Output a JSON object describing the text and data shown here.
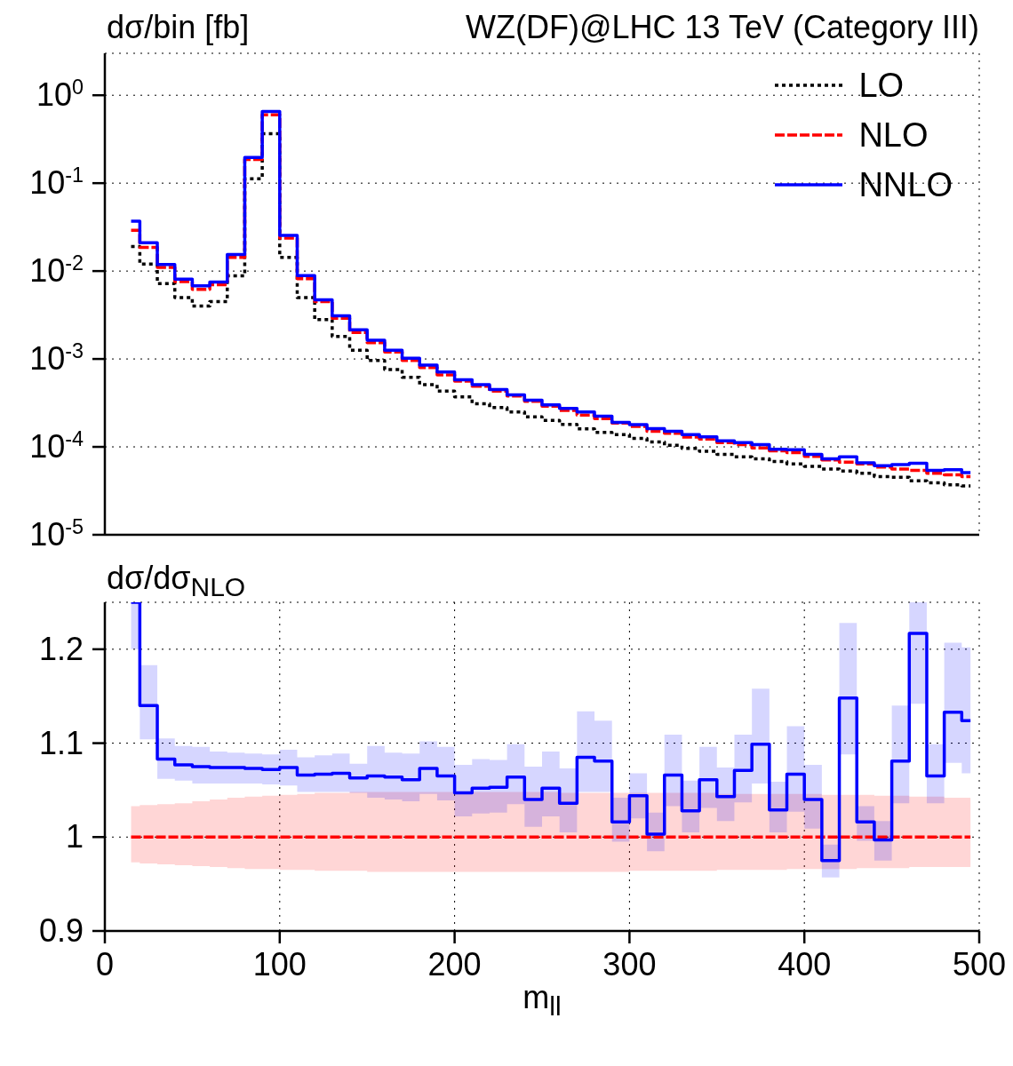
{
  "chart_data": [
    {
      "type": "step",
      "title": "WZ(DF)@LHC 13 TeV (Category III)",
      "ylabel": "dσ/bin [fb]",
      "x": [
        15,
        25,
        35,
        45,
        55,
        65,
        75,
        85,
        95,
        105,
        115,
        125,
        135,
        145,
        155,
        165,
        175,
        185,
        195,
        205,
        215,
        225,
        235,
        245,
        255,
        265,
        275,
        285,
        295,
        305,
        315,
        325,
        335,
        345,
        355,
        365,
        375,
        385,
        395,
        405,
        415,
        425,
        435,
        445,
        455,
        465,
        475,
        485,
        495
      ],
      "series": [
        {
          "name": "LO",
          "color": "#000000",
          "line_style": "dotted",
          "values": [
            0.019,
            0.012,
            0.0072,
            0.005,
            0.004,
            0.0045,
            0.0088,
            0.112,
            0.365,
            0.0143,
            0.005,
            0.0028,
            0.0018,
            0.00126,
            0.00096,
            0.00076,
            0.00062,
            0.00051,
            0.00043,
            0.00037,
            0.00031,
            0.00028,
            0.00025,
            0.00022,
            0.0002,
            0.00018,
            0.00016,
            0.000146,
            0.000138,
            0.000125,
            0.000114,
            0.000104,
            9.6e-05,
            8.9e-05,
            8.2e-05,
            7.7e-05,
            7.3e-05,
            6.8e-05,
            6.4e-05,
            6e-05,
            5.6e-05,
            5.3e-05,
            5e-05,
            4.6e-05,
            4.5e-05,
            4.1e-05,
            3.9e-05,
            3.7e-05,
            3.6e-05
          ]
        },
        {
          "name": "NLO",
          "color": "#ff0000",
          "line_style": "dashed",
          "values": [
            0.029,
            0.0186,
            0.011,
            0.0076,
            0.0062,
            0.007,
            0.0143,
            0.186,
            0.6,
            0.0237,
            0.0082,
            0.0045,
            0.0029,
            0.002,
            0.00153,
            0.0012,
            0.00096,
            0.0008,
            0.00066,
            0.00056,
            0.00049,
            0.00043,
            0.00038,
            0.00033,
            0.00029,
            0.00026,
            0.00023,
            0.00021,
            0.000186,
            0.000171,
            0.00015,
            0.000143,
            0.000129,
            0.000123,
            0.000112,
            0.000106,
            9.7e-05,
            9e-05,
            8.6e-05,
            7.8e-05,
            7.1e-05,
            6.7e-05,
            6.4e-05,
            5.9e-05,
            5.6e-05,
            5.4e-05,
            5e-05,
            4.8e-05,
            4.6e-05
          ]
        },
        {
          "name": "NNLO",
          "color": "#0000ff",
          "line_style": "solid",
          "values": [
            0.037,
            0.021,
            0.0119,
            0.0081,
            0.0068,
            0.0075,
            0.0154,
            0.196,
            0.655,
            0.0255,
            0.0089,
            0.0047,
            0.0031,
            0.00215,
            0.00163,
            0.00126,
            0.00102,
            0.00085,
            0.00071,
            0.00058,
            0.00051,
            0.00045,
            0.00039,
            0.00034,
            0.0003,
            0.000274,
            0.00025,
            0.000224,
            0.00019,
            0.000179,
            0.000161,
            0.00015,
            0.000138,
            0.00013,
            0.000117,
            0.000112,
            0.000106,
            9.4e-05,
            9.3e-05,
            8.2e-05,
            7.3e-05,
            7.7e-05,
            6.6e-05,
            6.1e-05,
            6.3e-05,
            6.5e-05,
            5.4e-05,
            5.5e-05,
            5.1e-05
          ]
        }
      ],
      "log": "y",
      "xlim": [
        0,
        500
      ],
      "ylim": [
        1e-05,
        3
      ],
      "yticks": [
        {
          "value": 1e-05,
          "label": "10$^{-5}$"
        },
        {
          "value": 0.0001,
          "label": "10$^{-4}$"
        },
        {
          "value": 0.001,
          "label": "10$^{-3}$"
        },
        {
          "value": 0.01,
          "label": "10$^{-2}$"
        },
        {
          "value": 0.1,
          "label": "10$^{-1}$"
        },
        {
          "value": 1,
          "label": "10$^{0}$"
        }
      ],
      "xticks": [
        0,
        100,
        200,
        300,
        400,
        500
      ],
      "tick_labels": "y",
      "grid": true,
      "legend": "top right"
    },
    {
      "type": "step",
      "ylabel": "dσ/dσ$_{NLO}$",
      "xlabel": "m$_{ll}$",
      "x": [
        15,
        25,
        35,
        45,
        55,
        65,
        75,
        85,
        95,
        105,
        115,
        125,
        135,
        145,
        155,
        165,
        175,
        185,
        195,
        205,
        215,
        225,
        235,
        245,
        255,
        265,
        275,
        285,
        295,
        305,
        315,
        325,
        335,
        345,
        355,
        365,
        375,
        385,
        395,
        405,
        415,
        425,
        435,
        445,
        455,
        465,
        475,
        485,
        495
      ],
      "series": [
        {
          "color": "#ff0000",
          "line_style": "dashed",
          "values": [
            1,
            1,
            1,
            1,
            1,
            1,
            1,
            1,
            1,
            1,
            1,
            1,
            1,
            1,
            1,
            1,
            1,
            1,
            1,
            1,
            1,
            1,
            1,
            1,
            1,
            1,
            1,
            1,
            1,
            1,
            1,
            1,
            1,
            1,
            1,
            1,
            1,
            1,
            1,
            1,
            1,
            1,
            1,
            1,
            1,
            1,
            1,
            1,
            1
          ],
          "lower": [
            0.973,
            0.972,
            0.971,
            0.97,
            0.969,
            0.968,
            0.967,
            0.966,
            0.966,
            0.965,
            0.965,
            0.964,
            0.964,
            0.964,
            0.963,
            0.963,
            0.963,
            0.963,
            0.963,
            0.963,
            0.963,
            0.963,
            0.963,
            0.963,
            0.963,
            0.963,
            0.963,
            0.963,
            0.963,
            0.964,
            0.964,
            0.964,
            0.964,
            0.964,
            0.965,
            0.965,
            0.965,
            0.965,
            0.966,
            0.966,
            0.966,
            0.966,
            0.967,
            0.967,
            0.967,
            0.968,
            0.968,
            0.968,
            0.968
          ],
          "upper": [
            1.033,
            1.034,
            1.035,
            1.036,
            1.038,
            1.04,
            1.042,
            1.043,
            1.044,
            1.045,
            1.046,
            1.047,
            1.047,
            1.048,
            1.048,
            1.048,
            1.048,
            1.048,
            1.048,
            1.048,
            1.048,
            1.048,
            1.048,
            1.048,
            1.048,
            1.047,
            1.047,
            1.047,
            1.047,
            1.047,
            1.047,
            1.047,
            1.047,
            1.047,
            1.046,
            1.046,
            1.046,
            1.046,
            1.046,
            1.046,
            1.045,
            1.045,
            1.045,
            1.044,
            1.044,
            1.043,
            1.043,
            1.042,
            1.042
          ]
        },
        {
          "color": "#0000ff",
          "line_style": "solid",
          "values": [
            1.25,
            1.14,
            1.083,
            1.077,
            1.075,
            1.074,
            1.074,
            1.073,
            1.072,
            1.074,
            1.066,
            1.067,
            1.068,
            1.063,
            1.065,
            1.064,
            1.061,
            1.073,
            1.065,
            1.047,
            1.052,
            1.053,
            1.064,
            1.04,
            1.052,
            1.036,
            1.085,
            1.081,
            1.016,
            1.044,
            1.003,
            1.066,
            1.028,
            1.061,
            1.043,
            1.071,
            1.099,
            1.029,
            1.067,
            1.04,
            0.975,
            1.148,
            1.016,
            0.997,
            1.081,
            1.217,
            1.065,
            1.133,
            1.124
          ],
          "lower": [
            1.2,
            1.104,
            1.062,
            1.06,
            1.057,
            1.057,
            1.057,
            1.057,
            1.056,
            1.055,
            1.048,
            1.048,
            1.048,
            1.047,
            1.042,
            1.04,
            1.038,
            1.046,
            1.039,
            1.022,
            1.025,
            1.026,
            1.035,
            1.011,
            1.022,
            1.005,
            1.048,
            1.048,
            0.995,
            1.02,
            0.985,
            1.033,
            1.005,
            1.031,
            1.017,
            1.037,
            1.057,
            1.005,
            1.027,
            1.009,
            0.957,
            1.088,
            0.996,
            0.975,
            1.036,
            1.142,
            1.036,
            1.079,
            1.068
          ],
          "upper": [
            1.25,
            1.183,
            1.105,
            1.097,
            1.096,
            1.091,
            1.09,
            1.089,
            1.088,
            1.093,
            1.085,
            1.087,
            1.089,
            1.078,
            1.097,
            1.09,
            1.089,
            1.102,
            1.096,
            1.077,
            1.083,
            1.082,
            1.099,
            1.075,
            1.091,
            1.073,
            1.134,
            1.124,
            1.042,
            1.068,
            1.026,
            1.109,
            1.06,
            1.096,
            1.074,
            1.109,
            1.158,
            1.059,
            1.118,
            1.077,
            0.992,
            1.228,
            1.033,
            1.017,
            1.14,
            1.25,
            1.099,
            1.207,
            1.202
          ]
        }
      ],
      "xlim": [
        0,
        500
      ],
      "ylim": [
        0.9,
        1.25
      ],
      "yticks": [
        0.9,
        1,
        1.1,
        1.2
      ],
      "xticks": [
        0,
        100,
        200,
        300,
        400,
        500
      ],
      "grid": true
    }
  ]
}
